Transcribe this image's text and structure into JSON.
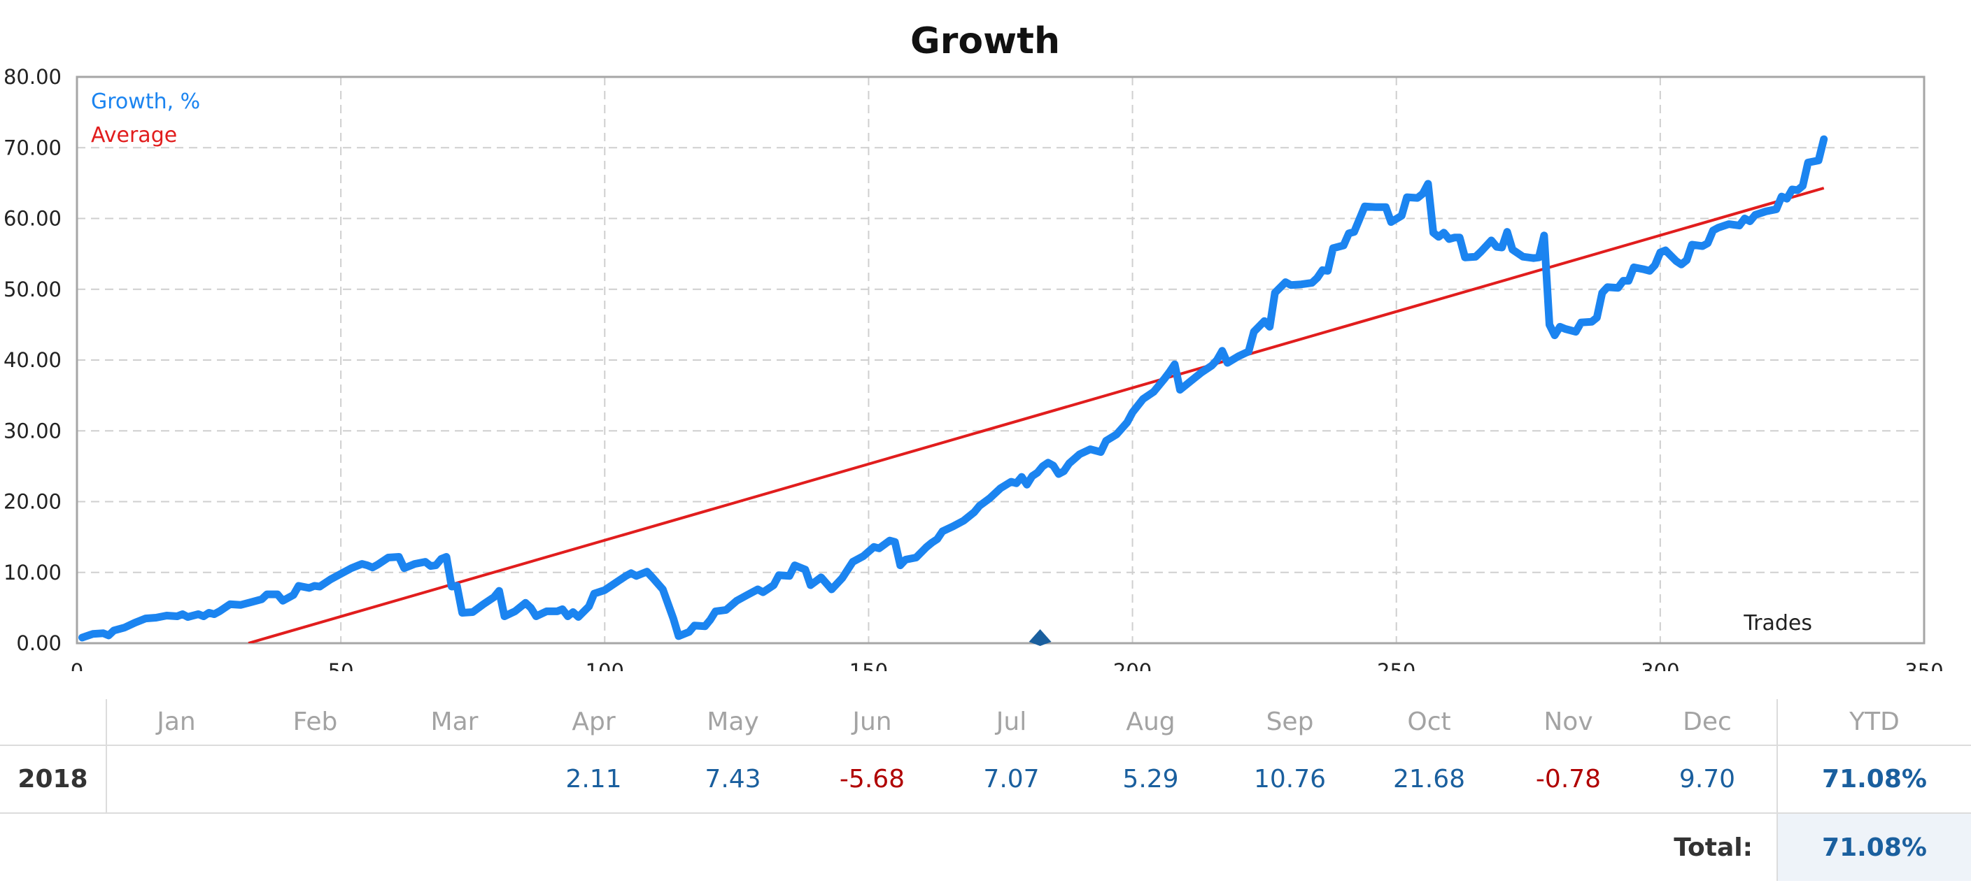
{
  "chart_data": {
    "type": "line",
    "title": "Growth",
    "xlabel": "Trades",
    "ylabel": "",
    "xlim": [
      0,
      350
    ],
    "ylim": [
      0,
      80
    ],
    "x_ticks": [
      "0",
      "50",
      "100",
      "150",
      "200",
      "250",
      "300",
      "350"
    ],
    "y_ticks": [
      "0.00",
      "10.00",
      "20.00",
      "30.00",
      "40.00",
      "50.00",
      "60.00",
      "70.00",
      "80.00"
    ],
    "grid": true,
    "legend_position": "top-left",
    "series": [
      {
        "name": "Growth, %",
        "color": "#1b84f0",
        "points": [
          [
            1,
            0.8
          ],
          [
            3,
            1.3
          ],
          [
            5,
            1.4
          ],
          [
            6,
            1.1
          ],
          [
            7,
            1.8
          ],
          [
            9,
            2.2
          ],
          [
            11,
            2.9
          ],
          [
            13,
            3.5
          ],
          [
            15,
            3.6
          ],
          [
            17,
            3.9
          ],
          [
            19,
            3.8
          ],
          [
            20,
            4.1
          ],
          [
            21,
            3.7
          ],
          [
            23,
            4.1
          ],
          [
            24,
            3.8
          ],
          [
            25,
            4.3
          ],
          [
            26,
            4.1
          ],
          [
            27,
            4.5
          ],
          [
            29,
            5.5
          ],
          [
            31,
            5.4
          ],
          [
            33,
            5.8
          ],
          [
            35,
            6.2
          ],
          [
            36,
            6.9
          ],
          [
            38,
            6.9
          ],
          [
            39,
            6.0
          ],
          [
            41,
            6.8
          ],
          [
            42,
            8.1
          ],
          [
            44,
            7.8
          ],
          [
            45,
            8.1
          ],
          [
            46,
            8.0
          ],
          [
            48,
            9.0
          ],
          [
            50,
            9.8
          ],
          [
            52,
            10.6
          ],
          [
            54,
            11.2
          ],
          [
            55,
            11.0
          ],
          [
            56,
            10.7
          ],
          [
            57,
            11.1
          ],
          [
            59,
            12.1
          ],
          [
            61,
            12.2
          ],
          [
            62,
            10.6
          ],
          [
            64,
            11.2
          ],
          [
            66,
            11.5
          ],
          [
            67,
            10.9
          ],
          [
            68,
            11.0
          ],
          [
            69,
            11.9
          ],
          [
            70,
            12.2
          ],
          [
            71,
            8.0
          ],
          [
            72,
            8.1
          ],
          [
            73,
            4.3
          ],
          [
            75,
            4.4
          ],
          [
            77,
            5.5
          ],
          [
            79,
            6.5
          ],
          [
            80,
            7.4
          ],
          [
            81,
            3.8
          ],
          [
            83,
            4.5
          ],
          [
            85,
            5.7
          ],
          [
            86,
            5.0
          ],
          [
            87,
            3.8
          ],
          [
            89,
            4.5
          ],
          [
            91,
            4.5
          ],
          [
            92,
            4.8
          ],
          [
            93,
            3.8
          ],
          [
            94,
            4.4
          ],
          [
            95,
            3.7
          ],
          [
            97,
            5.2
          ],
          [
            98,
            7.0
          ],
          [
            100,
            7.5
          ],
          [
            102,
            8.5
          ],
          [
            104,
            9.5
          ],
          [
            105,
            9.9
          ],
          [
            106,
            9.5
          ],
          [
            108,
            10.1
          ],
          [
            109,
            9.3
          ],
          [
            111,
            7.6
          ],
          [
            113,
            3.5
          ],
          [
            114,
            1.0
          ],
          [
            116,
            1.6
          ],
          [
            117,
            2.5
          ],
          [
            119,
            2.4
          ],
          [
            120,
            3.3
          ],
          [
            121,
            4.5
          ],
          [
            123,
            4.7
          ],
          [
            125,
            6.0
          ],
          [
            127,
            6.8
          ],
          [
            129,
            7.6
          ],
          [
            130,
            7.2
          ],
          [
            132,
            8.2
          ],
          [
            133,
            9.6
          ],
          [
            135,
            9.5
          ],
          [
            136,
            11.0
          ],
          [
            138,
            10.4
          ],
          [
            139,
            8.2
          ],
          [
            141,
            9.3
          ],
          [
            143,
            7.6
          ],
          [
            145,
            9.2
          ],
          [
            147,
            11.5
          ],
          [
            149,
            12.3
          ],
          [
            151,
            13.6
          ],
          [
            152,
            13.4
          ],
          [
            154,
            14.5
          ],
          [
            155,
            14.3
          ],
          [
            156,
            11.0
          ],
          [
            157,
            11.8
          ],
          [
            159,
            12.1
          ],
          [
            161,
            13.6
          ],
          [
            162,
            14.2
          ],
          [
            163,
            14.7
          ],
          [
            164,
            15.8
          ],
          [
            166,
            16.5
          ],
          [
            168,
            17.3
          ],
          [
            170,
            18.5
          ],
          [
            171,
            19.4
          ],
          [
            173,
            20.5
          ],
          [
            175,
            21.9
          ],
          [
            177,
            22.8
          ],
          [
            178,
            22.6
          ],
          [
            179,
            23.5
          ],
          [
            180,
            22.4
          ],
          [
            181,
            23.6
          ],
          [
            182,
            24.1
          ],
          [
            183,
            25.0
          ],
          [
            184,
            25.5
          ],
          [
            185,
            25.1
          ],
          [
            186,
            23.9
          ],
          [
            187,
            24.3
          ],
          [
            188,
            25.4
          ],
          [
            190,
            26.7
          ],
          [
            192,
            27.4
          ],
          [
            194,
            27.0
          ],
          [
            195,
            28.6
          ],
          [
            197,
            29.5
          ],
          [
            199,
            31.2
          ],
          [
            200,
            32.6
          ],
          [
            202,
            34.5
          ],
          [
            204,
            35.5
          ],
          [
            206,
            37.3
          ],
          [
            207,
            38.3
          ],
          [
            208,
            39.4
          ],
          [
            209,
            35.8
          ],
          [
            211,
            37.0
          ],
          [
            213,
            38.2
          ],
          [
            215,
            39.2
          ],
          [
            216,
            40.0
          ],
          [
            217,
            41.3
          ],
          [
            218,
            39.6
          ],
          [
            220,
            40.5
          ],
          [
            222,
            41.2
          ],
          [
            223,
            44.0
          ],
          [
            225,
            45.5
          ],
          [
            226,
            44.7
          ],
          [
            227,
            49.5
          ],
          [
            229,
            51.0
          ],
          [
            230,
            50.6
          ],
          [
            232,
            50.7
          ],
          [
            234,
            50.9
          ],
          [
            235,
            51.6
          ],
          [
            236,
            52.7
          ],
          [
            237,
            52.6
          ],
          [
            238,
            55.8
          ],
          [
            240,
            56.2
          ],
          [
            241,
            57.9
          ],
          [
            242,
            58.1
          ],
          [
            244,
            61.7
          ],
          [
            246,
            61.6
          ],
          [
            248,
            61.6
          ],
          [
            249,
            59.5
          ],
          [
            251,
            60.4
          ],
          [
            252,
            63.0
          ],
          [
            254,
            62.9
          ],
          [
            255,
            63.5
          ],
          [
            256,
            64.9
          ],
          [
            257,
            58.0
          ],
          [
            258,
            57.4
          ],
          [
            259,
            58.0
          ],
          [
            260,
            57.1
          ],
          [
            261,
            57.3
          ],
          [
            262,
            57.3
          ],
          [
            263,
            54.5
          ],
          [
            265,
            54.6
          ],
          [
            266,
            55.3
          ],
          [
            268,
            56.9
          ],
          [
            269,
            56.0
          ],
          [
            270,
            55.9
          ],
          [
            271,
            58.1
          ],
          [
            272,
            55.6
          ],
          [
            274,
            54.6
          ],
          [
            276,
            54.4
          ],
          [
            277,
            54.5
          ],
          [
            278,
            57.6
          ],
          [
            279,
            45.0
          ],
          [
            280,
            43.5
          ],
          [
            281,
            44.7
          ],
          [
            282,
            44.4
          ],
          [
            284,
            44.0
          ],
          [
            285,
            45.3
          ],
          [
            287,
            45.4
          ],
          [
            288,
            46.0
          ],
          [
            289,
            49.5
          ],
          [
            290,
            50.3
          ],
          [
            292,
            50.2
          ],
          [
            293,
            51.2
          ],
          [
            294,
            51.2
          ],
          [
            295,
            53.1
          ],
          [
            297,
            52.8
          ],
          [
            298,
            52.6
          ],
          [
            299,
            53.4
          ],
          [
            300,
            55.2
          ],
          [
            301,
            55.5
          ],
          [
            303,
            54.0
          ],
          [
            304,
            53.5
          ],
          [
            305,
            54.1
          ],
          [
            306,
            56.3
          ],
          [
            308,
            56.1
          ],
          [
            309,
            56.5
          ],
          [
            310,
            58.3
          ],
          [
            311,
            58.7
          ],
          [
            313,
            59.2
          ],
          [
            315,
            59.0
          ],
          [
            316,
            60.0
          ],
          [
            317,
            59.6
          ],
          [
            318,
            60.5
          ],
          [
            320,
            61.0
          ],
          [
            322,
            61.3
          ],
          [
            323,
            63.1
          ],
          [
            324,
            62.8
          ],
          [
            325,
            64.1
          ],
          [
            326,
            64.0
          ],
          [
            327,
            64.6
          ],
          [
            328,
            67.9
          ],
          [
            330,
            68.2
          ],
          [
            331,
            71.2
          ]
        ]
      },
      {
        "name": "Average",
        "color": "#e11d1d",
        "points": [
          [
            32.5,
            0
          ],
          [
            331,
            64.3
          ]
        ]
      }
    ],
    "marker": {
      "x": 182.5,
      "y": 0,
      "shape": "diamond",
      "color": "#1a5f9e"
    }
  },
  "returns_table": {
    "months": [
      "Jan",
      "Feb",
      "Mar",
      "Apr",
      "May",
      "Jun",
      "Jul",
      "Aug",
      "Sep",
      "Oct",
      "Nov",
      "Dec"
    ],
    "ytd_header": "YTD",
    "rows": [
      {
        "year": "2018",
        "values": [
          "",
          "",
          "",
          "2.11",
          "7.43",
          "-5.68",
          "7.07",
          "5.29",
          "10.76",
          "21.68",
          "-0.78",
          "9.70"
        ],
        "ytd": "71.08%"
      }
    ],
    "total_label": "Total:",
    "total_value": "71.08%",
    "colors": {
      "positive": "#1a5f9e",
      "negative": "#b00000"
    }
  }
}
